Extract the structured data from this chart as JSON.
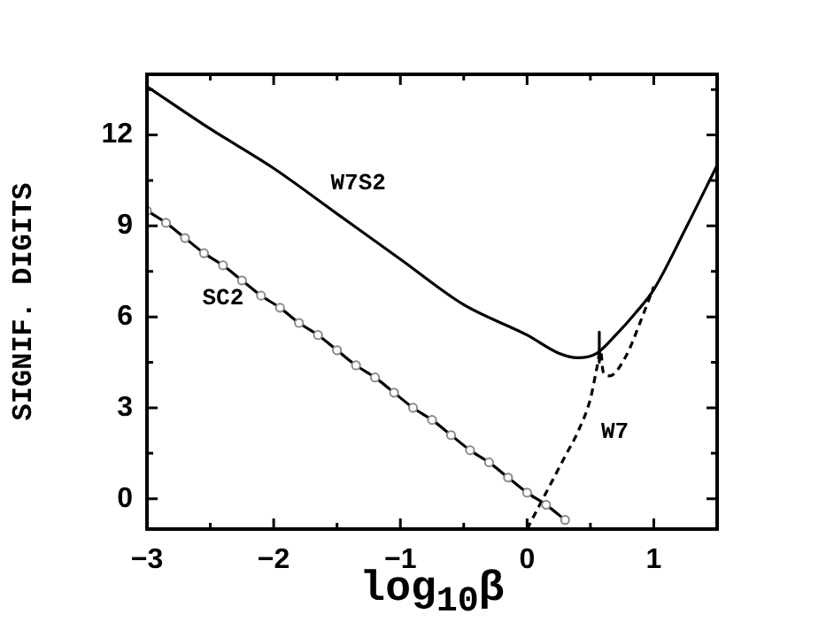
{
  "chart_data": {
    "type": "line",
    "xlabel": "log$_{10}$β",
    "ylabel": "SIGNIF. DIGITS",
    "xlim": [
      -3,
      1.5
    ],
    "ylim": [
      -1,
      14
    ],
    "xticks": [
      -3,
      {
        "value": -2.5,
        "label": null
      },
      -2,
      {
        "value": -1.5,
        "label": null
      },
      -1,
      {
        "value": -0.5,
        "label": null
      },
      0,
      {
        "value": 0.5,
        "label": null
      },
      1
    ],
    "yticks": [
      0,
      {
        "value": 1.5,
        "label": null
      },
      3,
      {
        "value": 4.5,
        "label": null
      },
      6,
      {
        "value": 7.5,
        "label": null
      },
      9,
      {
        "value": 10.5,
        "label": null
      },
      12,
      {
        "value": 13.5,
        "label": null
      }
    ],
    "grid": false,
    "legend": false,
    "series": [
      {
        "name": "W7S2",
        "color": "#000000",
        "line_style": "solid",
        "marker": "none",
        "x": [
          -3,
          -2.5,
          -2,
          -1.5,
          -1,
          -0.5,
          0,
          0.25,
          0.4,
          0.55,
          0.7,
          0.85,
          1,
          1.25,
          1.5
        ],
        "values": [
          13.6,
          12.2,
          10.9,
          9.4,
          7.9,
          6.4,
          5.4,
          4.8,
          4.65,
          4.8,
          5.4,
          6.1,
          6.9,
          8.9,
          11.0
        ]
      },
      {
        "color": "#000000",
        "line_style": "solid",
        "marker": "none",
        "x": [
          0.57,
          0.57
        ],
        "values": [
          5.5,
          4.5
        ]
      },
      {
        "name": "SC2",
        "color": "#000000",
        "line_style": "solid",
        "marker": "circle",
        "x": [
          -3,
          -2.85,
          -2.7,
          -2.55,
          -2.4,
          -2.25,
          -2.1,
          -1.95,
          -1.8,
          -1.65,
          -1.5,
          -1.35,
          -1.2,
          -1.05,
          -0.9,
          -0.75,
          -0.6,
          -0.45,
          -0.3,
          -0.15,
          0,
          0.15,
          0.3
        ],
        "values": [
          9.5,
          9.1,
          8.6,
          8.1,
          7.7,
          7.2,
          6.7,
          6.3,
          5.8,
          5.4,
          4.9,
          4.4,
          4.0,
          3.5,
          3.0,
          2.6,
          2.1,
          1.6,
          1.2,
          0.7,
          0.2,
          -0.2,
          -0.7
        ]
      },
      {
        "name": "W7",
        "color": "#000000",
        "line_style": "dashed",
        "marker": "none",
        "x": [
          0,
          0.1,
          0.2,
          0.3,
          0.4,
          0.5,
          0.55,
          0.58,
          0.6,
          0.65,
          0.78,
          0.9,
          1.0
        ],
        "values": [
          -1,
          -0.2,
          0.6,
          1.4,
          2.2,
          3.3,
          4.3,
          4.9,
          4.2,
          4.05,
          4.7,
          5.9,
          7.0
        ]
      }
    ]
  }
}
